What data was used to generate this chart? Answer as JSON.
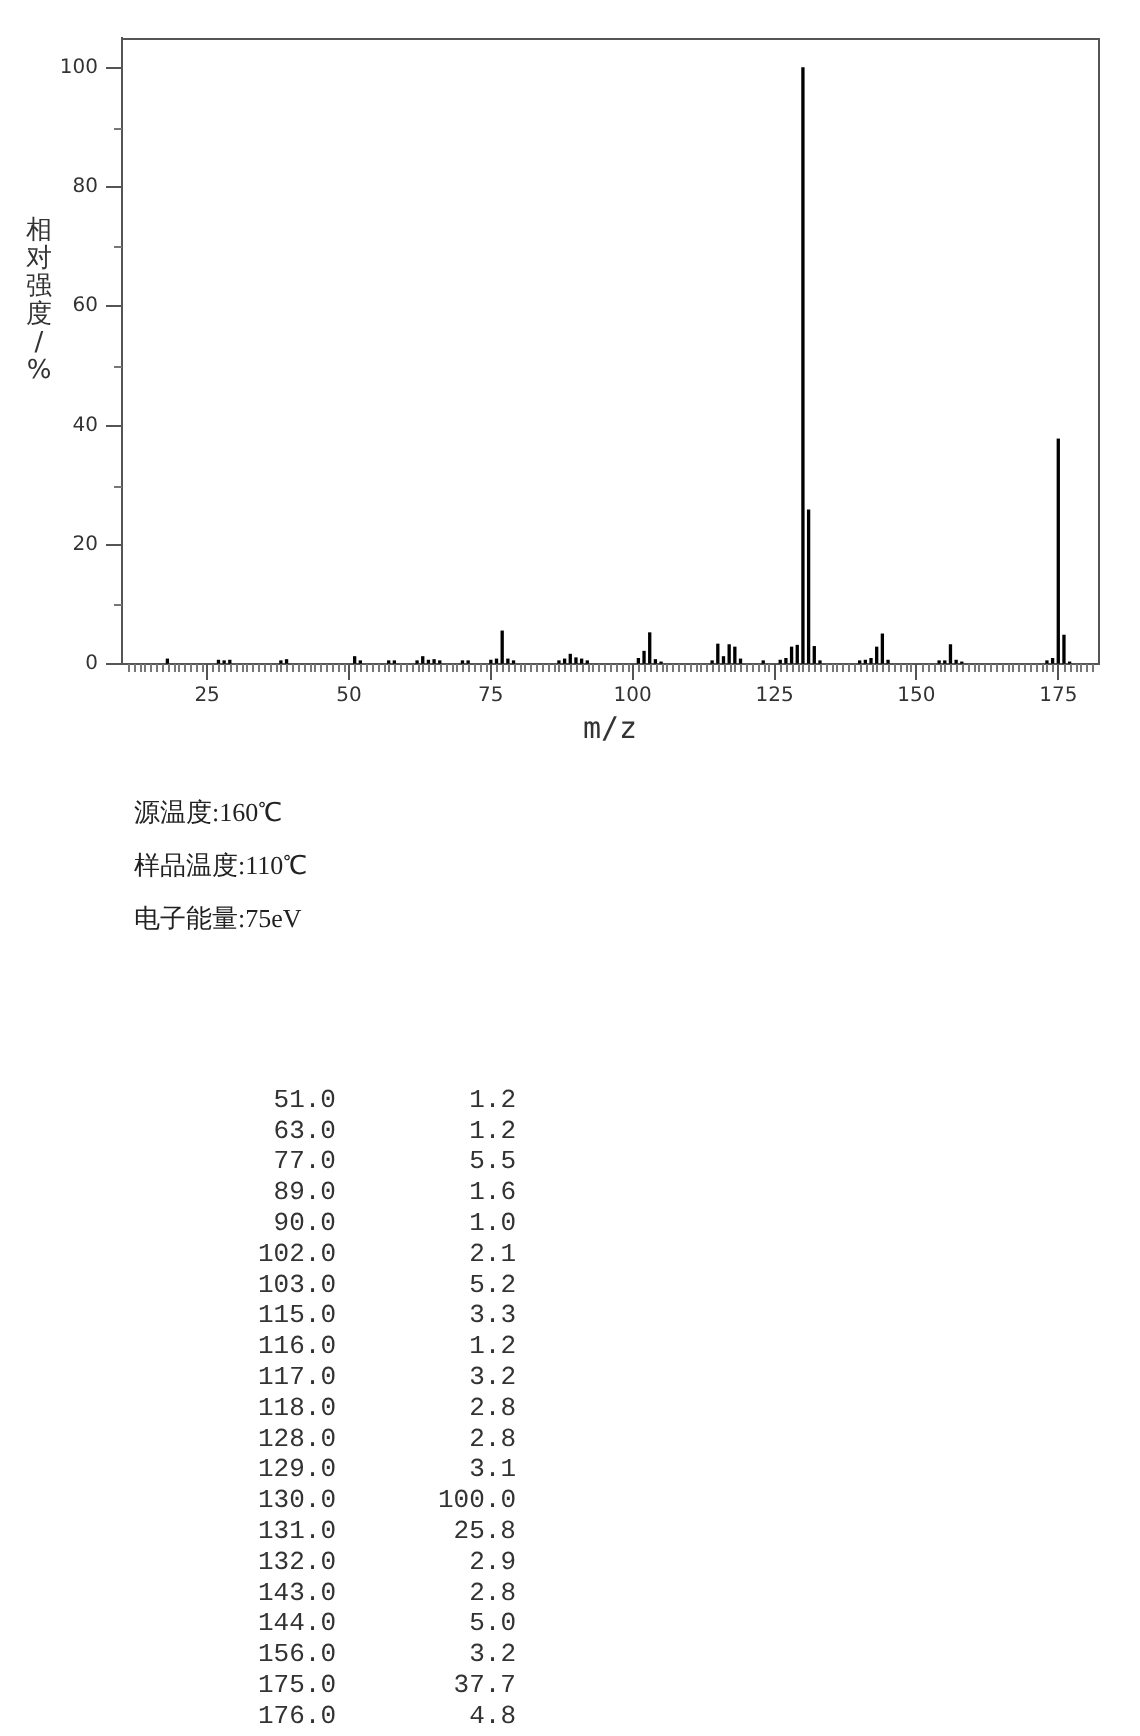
{
  "chart_data": {
    "type": "bar",
    "xlabel": "m/z",
    "ylabel": "相对强度/%",
    "annotations": [
      "源温度:160℃",
      "样品温度:110℃",
      "电子能量:75eV",
      "51.0",
      "1.2",
      "63.0",
      "1.2",
      "77.0",
      "5.5",
      "89.0",
      "1.6",
      "90.0",
      "1.0",
      "102.0",
      "2.1",
      "103.0",
      "5.2",
      "115.0",
      "3.3",
      "116.0",
      "1.2",
      "117.0",
      "3.2",
      "118.0",
      "2.8",
      "128.0",
      "2.8",
      "129.0",
      "3.1",
      "130.0",
      "100.0",
      "131.0",
      "25.8",
      "132.0",
      "2.9",
      "143.0",
      "2.8",
      "144.0",
      "5.0",
      "156.0",
      "3.2",
      "175.0",
      "37.7",
      "176.0",
      "4.8"
    ],
    "x": [
      18,
      27,
      28,
      29,
      38,
      39,
      51,
      52,
      57,
      58,
      62,
      63,
      64,
      65,
      66,
      70,
      71,
      75,
      76,
      77,
      78,
      79,
      87,
      88,
      89,
      90,
      91,
      92,
      101,
      102,
      103,
      104,
      105,
      114,
      115,
      116,
      117,
      118,
      119,
      123,
      126,
      127,
      128,
      129,
      130,
      131,
      132,
      133,
      140,
      141,
      142,
      143,
      144,
      145,
      154,
      155,
      156,
      157,
      158,
      173,
      174,
      175,
      176,
      177
    ],
    "values": [
      0.8,
      0.6,
      0.5,
      0.6,
      0.5,
      0.7,
      1.2,
      0.5,
      0.5,
      0.5,
      0.5,
      1.2,
      0.6,
      0.7,
      0.5,
      0.5,
      0.5,
      0.6,
      0.8,
      5.5,
      0.8,
      0.5,
      0.5,
      0.8,
      1.6,
      1.0,
      0.8,
      0.5,
      0.9,
      2.1,
      5.2,
      0.7,
      0.3,
      0.5,
      3.3,
      1.2,
      3.2,
      2.8,
      0.8,
      0.5,
      0.6,
      0.9,
      2.8,
      3.1,
      100.0,
      25.8,
      2.9,
      0.5,
      0.5,
      0.6,
      0.9,
      2.8,
      5.0,
      0.6,
      0.5,
      0.5,
      3.2,
      0.6,
      0.3,
      0.5,
      0.9,
      37.7,
      4.8,
      0.3
    ],
    "color": "#000000",
    "xlim": [
      10,
      182
    ],
    "xticks": [
      {
        "value": 11,
        "label": null
      },
      {
        "value": 12,
        "label": null
      },
      {
        "value": 13,
        "label": null
      },
      {
        "value": 14,
        "label": null
      },
      {
        "value": 15,
        "label": null
      },
      {
        "value": 16,
        "label": null
      },
      {
        "value": 17,
        "label": null
      },
      {
        "value": 18,
        "label": null
      },
      {
        "value": 19,
        "label": null
      },
      {
        "value": 20,
        "label": null
      },
      {
        "value": 21,
        "label": null
      },
      {
        "value": 22,
        "label": null
      },
      {
        "value": 23,
        "label": null
      },
      {
        "value": 24,
        "label": null
      },
      25,
      {
        "value": 26,
        "label": null
      },
      {
        "value": 27,
        "label": null
      },
      {
        "value": 28,
        "label": null
      },
      {
        "value": 29,
        "label": null
      },
      {
        "value": 30,
        "label": null
      },
      {
        "value": 31,
        "label": null
      },
      {
        "value": 32,
        "label": null
      },
      {
        "value": 33,
        "label": null
      },
      {
        "value": 34,
        "label": null
      },
      {
        "value": 35,
        "label": null
      },
      {
        "value": 36,
        "label": null
      },
      {
        "value": 37,
        "label": null
      },
      {
        "value": 38,
        "label": null
      },
      {
        "value": 39,
        "label": null
      },
      {
        "value": 40,
        "label": null
      },
      {
        "value": 41,
        "label": null
      },
      {
        "value": 42,
        "label": null
      },
      {
        "value": 43,
        "label": null
      },
      {
        "value": 44,
        "label": null
      },
      {
        "value": 45,
        "label": null
      },
      {
        "value": 46,
        "label": null
      },
      {
        "value": 47,
        "label": null
      },
      {
        "value": 48,
        "label": null
      },
      {
        "value": 49,
        "label": null
      },
      50,
      {
        "value": 51,
        "label": null
      },
      {
        "value": 52,
        "label": null
      },
      {
        "value": 53,
        "label": null
      },
      {
        "value": 54,
        "label": null
      },
      {
        "value": 55,
        "label": null
      },
      {
        "value": 56,
        "label": null
      },
      {
        "value": 57,
        "label": null
      },
      {
        "value": 58,
        "label": null
      },
      {
        "value": 59,
        "label": null
      },
      {
        "value": 60,
        "label": null
      },
      {
        "value": 61,
        "label": null
      },
      {
        "value": 62,
        "label": null
      },
      {
        "value": 63,
        "label": null
      },
      {
        "value": 64,
        "label": null
      },
      {
        "value": 65,
        "label": null
      },
      {
        "value": 66,
        "label": null
      },
      {
        "value": 67,
        "label": null
      },
      {
        "value": 68,
        "label": null
      },
      {
        "value": 69,
        "label": null
      },
      {
        "value": 70,
        "label": null
      },
      {
        "value": 71,
        "label": null
      },
      {
        "value": 72,
        "label": null
      },
      {
        "value": 73,
        "label": null
      },
      {
        "value": 74,
        "label": null
      },
      75,
      {
        "value": 76,
        "label": null
      },
      {
        "value": 77,
        "label": null
      },
      {
        "value": 78,
        "label": null
      },
      {
        "value": 79,
        "label": null
      },
      {
        "value": 80,
        "label": null
      },
      {
        "value": 81,
        "label": null
      },
      {
        "value": 82,
        "label": null
      },
      {
        "value": 83,
        "label": null
      },
      {
        "value": 84,
        "label": null
      },
      {
        "value": 85,
        "label": null
      },
      {
        "value": 86,
        "label": null
      },
      {
        "value": 87,
        "label": null
      },
      {
        "value": 88,
        "label": null
      },
      {
        "value": 89,
        "label": null
      },
      {
        "value": 90,
        "label": null
      },
      {
        "value": 91,
        "label": null
      },
      {
        "value": 92,
        "label": null
      },
      {
        "value": 93,
        "label": null
      },
      {
        "value": 94,
        "label": null
      },
      {
        "value": 95,
        "label": null
      },
      {
        "value": 96,
        "label": null
      },
      {
        "value": 97,
        "label": null
      },
      {
        "value": 98,
        "label": null
      },
      {
        "value": 99,
        "label": null
      },
      100,
      {
        "value": 101,
        "label": null
      },
      {
        "value": 102,
        "label": null
      },
      {
        "value": 103,
        "label": null
      },
      {
        "value": 104,
        "label": null
      },
      {
        "value": 105,
        "label": null
      },
      {
        "value": 106,
        "label": null
      },
      {
        "value": 107,
        "label": null
      },
      {
        "value": 108,
        "label": null
      },
      {
        "value": 109,
        "label": null
      },
      {
        "value": 110,
        "label": null
      },
      {
        "value": 111,
        "label": null
      },
      {
        "value": 112,
        "label": null
      },
      {
        "value": 113,
        "label": null
      },
      {
        "value": 114,
        "label": null
      },
      {
        "value": 115,
        "label": null
      },
      {
        "value": 116,
        "label": null
      },
      {
        "value": 117,
        "label": null
      },
      {
        "value": 118,
        "label": null
      },
      {
        "value": 119,
        "label": null
      },
      {
        "value": 120,
        "label": null
      },
      {
        "value": 121,
        "label": null
      },
      {
        "value": 122,
        "label": null
      },
      {
        "value": 123,
        "label": null
      },
      {
        "value": 124,
        "label": null
      },
      125,
      {
        "value": 126,
        "label": null
      },
      {
        "value": 127,
        "label": null
      },
      {
        "value": 128,
        "label": null
      },
      {
        "value": 129,
        "label": null
      },
      {
        "value": 130,
        "label": null
      },
      {
        "value": 131,
        "label": null
      },
      {
        "value": 132,
        "label": null
      },
      {
        "value": 133,
        "label": null
      },
      {
        "value": 134,
        "label": null
      },
      {
        "value": 135,
        "label": null
      },
      {
        "value": 136,
        "label": null
      },
      {
        "value": 137,
        "label": null
      },
      {
        "value": 138,
        "label": null
      },
      {
        "value": 139,
        "label": null
      },
      {
        "value": 140,
        "label": null
      },
      {
        "value": 141,
        "label": null
      },
      {
        "value": 142,
        "label": null
      },
      {
        "value": 143,
        "label": null
      },
      {
        "value": 144,
        "label": null
      },
      {
        "value": 145,
        "label": null
      },
      {
        "value": 146,
        "label": null
      },
      {
        "value": 147,
        "label": null
      },
      {
        "value": 148,
        "label": null
      },
      {
        "value": 149,
        "label": null
      },
      150,
      {
        "value": 151,
        "label": null
      },
      {
        "value": 152,
        "label": null
      },
      {
        "value": 153,
        "label": null
      },
      {
        "value": 154,
        "label": null
      },
      {
        "value": 155,
        "label": null
      },
      {
        "value": 156,
        "label": null
      },
      {
        "value": 157,
        "label": null
      },
      {
        "value": 158,
        "label": null
      },
      {
        "value": 159,
        "label": null
      },
      {
        "value": 160,
        "label": null
      },
      {
        "value": 161,
        "label": null
      },
      {
        "value": 162,
        "label": null
      },
      {
        "value": 163,
        "label": null
      },
      {
        "value": 164,
        "label": null
      },
      {
        "value": 165,
        "label": null
      },
      {
        "value": 166,
        "label": null
      },
      {
        "value": 167,
        "label": null
      },
      {
        "value": 168,
        "label": null
      },
      {
        "value": 169,
        "label": null
      },
      {
        "value": 170,
        "label": null
      },
      {
        "value": 171,
        "label": null
      },
      {
        "value": 172,
        "label": null
      },
      {
        "value": 173,
        "label": null
      },
      {
        "value": 174,
        "label": null
      },
      175,
      {
        "value": 176,
        "label": null
      },
      {
        "value": 177,
        "label": null
      },
      {
        "value": 178,
        "label": null
      },
      {
        "value": 179,
        "label": null
      },
      {
        "value": 180,
        "label": null
      },
      {
        "value": 181,
        "label": null
      }
    ],
    "ylim": [
      0,
      105
    ],
    "yticks": [
      0,
      {
        "value": 10,
        "label": null
      },
      20,
      {
        "value": 30,
        "label": null
      },
      40,
      {
        "value": 50,
        "label": null
      },
      60,
      {
        "value": 70,
        "label": null
      },
      80,
      {
        "value": 90,
        "label": null
      },
      100
    ]
  }
}
